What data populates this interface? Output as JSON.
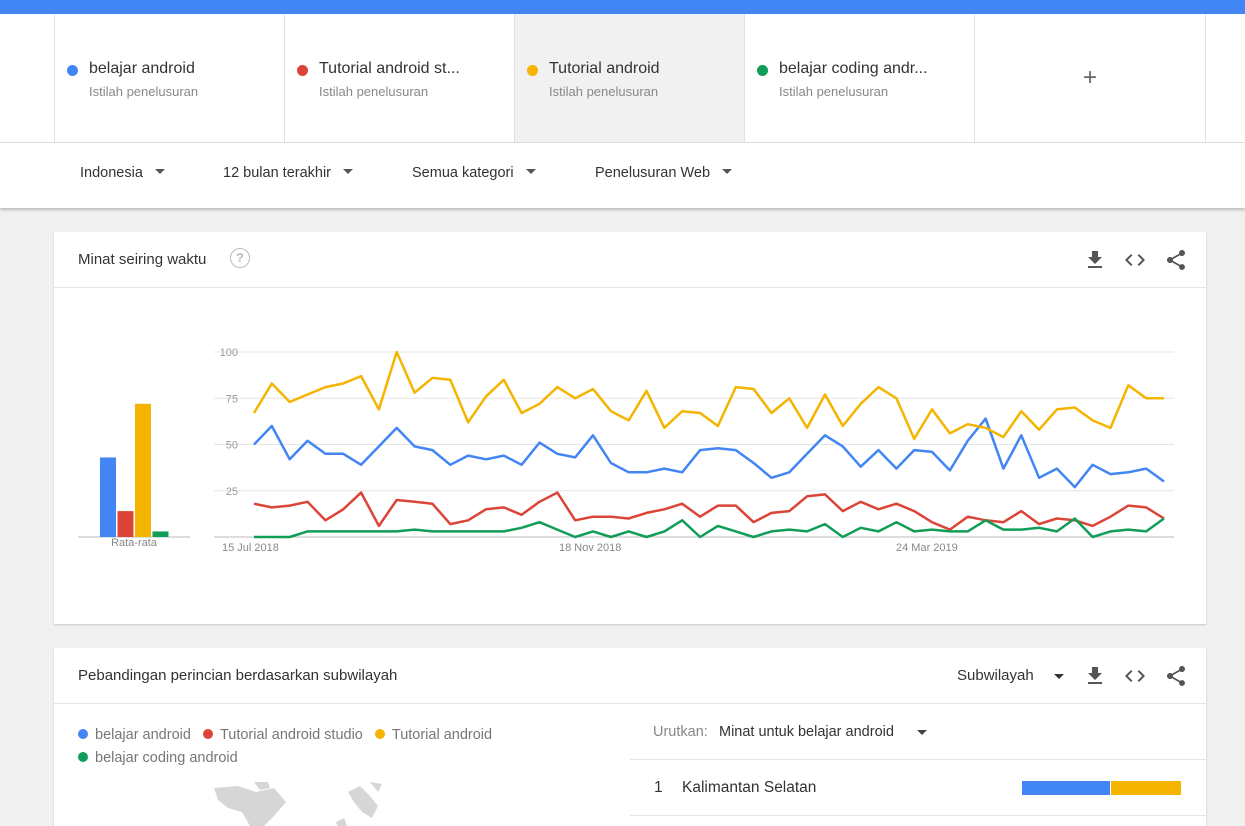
{
  "terms": [
    {
      "name": "belajar android",
      "type": "Istilah penelusuran",
      "color": "#4285f4"
    },
    {
      "name": "Tutorial android st...",
      "type": "Istilah penelusuran",
      "color": "#db4437"
    },
    {
      "name": "Tutorial android",
      "type": "Istilah penelusuran",
      "color": "#f4b400"
    },
    {
      "name": "belajar coding andr...",
      "type": "Istilah penelusuran",
      "color": "#0f9d58"
    }
  ],
  "add_term_label": "+",
  "filters": {
    "region": "Indonesia",
    "period": "12 bulan terakhir",
    "category": "Semua kategori",
    "search_type": "Penelusuran Web"
  },
  "interest_card": {
    "title": "Minat seiring waktu",
    "help_icon": "?",
    "icons": [
      "download-icon",
      "embed-icon",
      "share-icon"
    ]
  },
  "chart_data": {
    "type": "line",
    "x_tick_labels": [
      "15 Jul 2018",
      "18 Nov 2018",
      "24 Mar 2019"
    ],
    "y_tick_labels": [
      "100",
      "75",
      "50",
      "25"
    ],
    "ylim": [
      0,
      100
    ],
    "grid": true,
    "average": {
      "label": "Rata-rata",
      "values": [
        43,
        14,
        72,
        3
      ]
    },
    "series": [
      {
        "name": "belajar android",
        "color": "#4285f4",
        "values": [
          50,
          60,
          42,
          52,
          45,
          45,
          39,
          49,
          59,
          49,
          47,
          39,
          44,
          42,
          44,
          39,
          51,
          45,
          43,
          55,
          40,
          35,
          35,
          37,
          35,
          47,
          48,
          47,
          40,
          32,
          35,
          45,
          55,
          49,
          38,
          47,
          37,
          47,
          46,
          36,
          52,
          64,
          37,
          55,
          32,
          37,
          27,
          39,
          34,
          35,
          37,
          30
        ]
      },
      {
        "name": "Tutorial android studio",
        "color": "#db4437",
        "values": [
          18,
          16,
          17,
          19,
          9,
          15,
          24,
          6,
          20,
          19,
          18,
          7,
          9,
          15,
          16,
          12,
          19,
          24,
          9,
          11,
          11,
          10,
          13,
          15,
          18,
          11,
          17,
          17,
          8,
          13,
          14,
          22,
          23,
          14,
          19,
          15,
          18,
          14,
          8,
          4,
          11,
          9,
          8,
          14,
          7,
          10,
          9,
          6,
          11,
          17,
          16,
          10
        ]
      },
      {
        "name": "Tutorial android",
        "color": "#f4b400",
        "values": [
          67,
          83,
          73,
          77,
          81,
          83,
          87,
          69,
          100,
          78,
          86,
          85,
          62,
          76,
          85,
          67,
          72,
          81,
          75,
          80,
          68,
          63,
          79,
          59,
          68,
          67,
          60,
          81,
          80,
          67,
          75,
          59,
          77,
          60,
          72,
          81,
          75,
          53,
          69,
          56,
          61,
          59,
          54,
          68,
          58,
          69,
          70,
          63,
          59,
          82,
          75,
          75
        ]
      },
      {
        "name": "belajar coding android",
        "color": "#0f9d58",
        "values": [
          0,
          0,
          0,
          3,
          3,
          3,
          3,
          3,
          3,
          4,
          3,
          3,
          3,
          3,
          3,
          5,
          8,
          4,
          0,
          3,
          0,
          3,
          0,
          3,
          9,
          0,
          6,
          3,
          0,
          3,
          4,
          3,
          7,
          0,
          5,
          3,
          8,
          3,
          4,
          3,
          3,
          9,
          4,
          4,
          5,
          3,
          10,
          0,
          3,
          4,
          3,
          10
        ]
      }
    ]
  },
  "subregion_card": {
    "title": "Pebandingan perincian berdasarkan subwilayah",
    "subregion_label": "Subwilayah",
    "legend": [
      "belajar android",
      "Tutorial android studio",
      "Tutorial android",
      "belajar coding android"
    ],
    "sort_label": "Urutkan:",
    "sort_value": "Minat untuk belajar android",
    "regions": [
      {
        "rank": "1",
        "name": "Kalimantan Selatan",
        "share_blue": 0.55,
        "share_yellow": 0.45
      }
    ]
  }
}
